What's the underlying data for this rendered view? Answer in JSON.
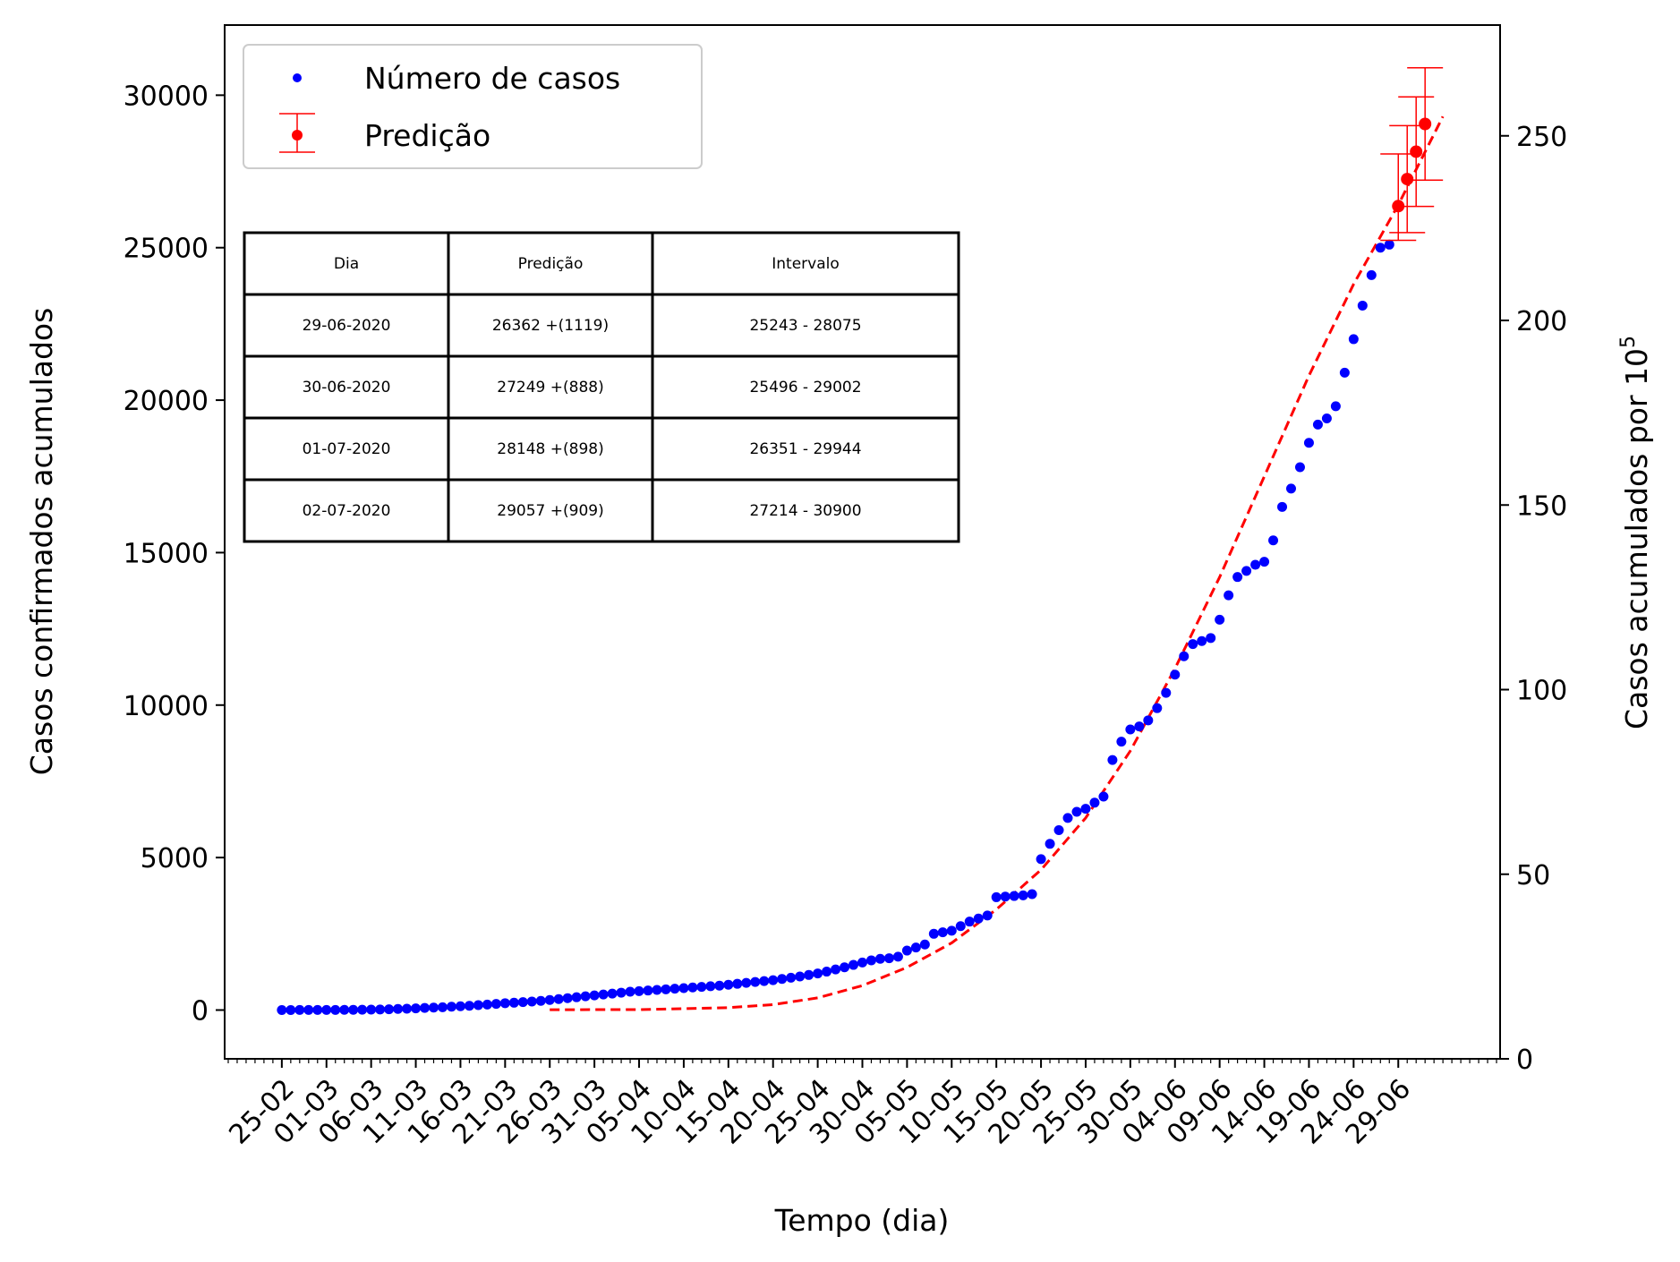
{
  "chart_data": {
    "type": "scatter",
    "xlabel": "Tempo (dia)",
    "ylabel_left": "Casos confirmados acumulados",
    "ylabel_right_main": "Casos acumulados por 10",
    "ylabel_right_sup": "5",
    "ylim_left": [
      -1600,
      32300
    ],
    "yticks_left": [
      "0",
      "5000",
      "10000",
      "15000",
      "20000",
      "25000",
      "30000"
    ],
    "ylim_right": [
      0,
      280
    ],
    "yticks_right": [
      "0",
      "50",
      "100",
      "150",
      "200",
      "250"
    ],
    "x_start_date": "2020-02-25",
    "xlim_days": [
      -6.4,
      136.4
    ],
    "xtick_labels": [
      "25-02",
      "01-03",
      "06-03",
      "11-03",
      "16-03",
      "21-03",
      "26-03",
      "31-03",
      "05-04",
      "10-04",
      "15-04",
      "20-04",
      "25-04",
      "30-04",
      "05-05",
      "10-05",
      "15-05",
      "20-05",
      "25-05",
      "30-05",
      "04-06",
      "09-06",
      "14-06",
      "19-06",
      "24-06",
      "29-06"
    ],
    "grid": false,
    "legend_position": "upper-left",
    "legend": [
      {
        "label": "Número de casos",
        "color": "#0000ff",
        "marker": "dot"
      },
      {
        "label": "Predição",
        "color": "#ff0000",
        "marker": "errorbar"
      }
    ],
    "series": [
      {
        "name": "Número de casos",
        "color": "#0000ff",
        "points": [
          [
            0,
            1
          ],
          [
            1,
            1
          ],
          [
            2,
            2
          ],
          [
            3,
            2
          ],
          [
            4,
            2
          ],
          [
            5,
            4
          ],
          [
            6,
            4
          ],
          [
            7,
            6
          ],
          [
            8,
            8
          ],
          [
            9,
            10
          ],
          [
            10,
            13
          ],
          [
            11,
            19
          ],
          [
            12,
            25
          ],
          [
            13,
            36
          ],
          [
            14,
            44
          ],
          [
            15,
            55
          ],
          [
            16,
            68
          ],
          [
            17,
            80
          ],
          [
            18,
            90
          ],
          [
            19,
            110
          ],
          [
            20,
            125
          ],
          [
            21,
            140
          ],
          [
            22,
            160
          ],
          [
            23,
            180
          ],
          [
            24,
            200
          ],
          [
            25,
            225
          ],
          [
            26,
            240
          ],
          [
            27,
            260
          ],
          [
            28,
            280
          ],
          [
            29,
            300
          ],
          [
            30,
            330
          ],
          [
            31,
            360
          ],
          [
            32,
            390
          ],
          [
            33,
            420
          ],
          [
            34,
            450
          ],
          [
            35,
            480
          ],
          [
            36,
            510
          ],
          [
            37,
            540
          ],
          [
            38,
            570
          ],
          [
            39,
            600
          ],
          [
            40,
            620
          ],
          [
            41,
            640
          ],
          [
            42,
            660
          ],
          [
            43,
            680
          ],
          [
            44,
            700
          ],
          [
            45,
            720
          ],
          [
            46,
            740
          ],
          [
            47,
            760
          ],
          [
            48,
            780
          ],
          [
            49,
            800
          ],
          [
            50,
            830
          ],
          [
            51,
            860
          ],
          [
            52,
            890
          ],
          [
            53,
            920
          ],
          [
            54,
            950
          ],
          [
            55,
            980
          ],
          [
            56,
            1020
          ],
          [
            57,
            1060
          ],
          [
            58,
            1100
          ],
          [
            59,
            1150
          ],
          [
            60,
            1200
          ],
          [
            61,
            1260
          ],
          [
            62,
            1330
          ],
          [
            63,
            1400
          ],
          [
            64,
            1480
          ],
          [
            65,
            1560
          ],
          [
            66,
            1630
          ],
          [
            67,
            1680
          ],
          [
            68,
            1700
          ],
          [
            69,
            1750
          ],
          [
            70,
            1950
          ],
          [
            71,
            2050
          ],
          [
            72,
            2150
          ],
          [
            73,
            2500
          ],
          [
            74,
            2550
          ],
          [
            75,
            2600
          ],
          [
            76,
            2750
          ],
          [
            77,
            2900
          ],
          [
            78,
            3000
          ],
          [
            79,
            3100
          ],
          [
            80,
            3700
          ],
          [
            81,
            3720
          ],
          [
            82,
            3740
          ],
          [
            83,
            3760
          ],
          [
            84,
            3800
          ],
          [
            85,
            4950
          ],
          [
            86,
            5450
          ],
          [
            87,
            5900
          ],
          [
            88,
            6300
          ],
          [
            89,
            6500
          ],
          [
            90,
            6600
          ],
          [
            91,
            6800
          ],
          [
            92,
            7000
          ],
          [
            93,
            8200
          ],
          [
            94,
            8800
          ],
          [
            95,
            9200
          ],
          [
            96,
            9300
          ],
          [
            97,
            9500
          ],
          [
            98,
            9900
          ],
          [
            99,
            10400
          ],
          [
            100,
            11000
          ],
          [
            101,
            11600
          ],
          [
            102,
            12000
          ],
          [
            103,
            12100
          ],
          [
            104,
            12200
          ],
          [
            105,
            12800
          ],
          [
            106,
            13600
          ],
          [
            107,
            14200
          ],
          [
            108,
            14400
          ],
          [
            109,
            14600
          ],
          [
            110,
            14700
          ],
          [
            111,
            15400
          ],
          [
            112,
            16500
          ],
          [
            113,
            17100
          ],
          [
            114,
            17800
          ],
          [
            115,
            18600
          ],
          [
            116,
            19200
          ],
          [
            117,
            19400
          ],
          [
            118,
            19800
          ],
          [
            119,
            20900
          ],
          [
            120,
            22000
          ],
          [
            121,
            23100
          ],
          [
            122,
            24100
          ],
          [
            123,
            25000
          ],
          [
            124,
            25100
          ]
        ]
      },
      {
        "name": "Predição",
        "color": "#ff0000",
        "points": [
          {
            "x": 125,
            "y": 26362,
            "low": 25243,
            "high": 28075
          },
          {
            "x": 126,
            "y": 27249,
            "low": 25496,
            "high": 29002
          },
          {
            "x": 127,
            "y": 28148,
            "low": 26351,
            "high": 29944
          },
          {
            "x": 128,
            "y": 29057,
            "low": 27214,
            "high": 30900
          }
        ]
      },
      {
        "type": "dashed-line",
        "color": "#ff0000",
        "points": [
          [
            30,
            10
          ],
          [
            40,
            15
          ],
          [
            50,
            80
          ],
          [
            55,
            180
          ],
          [
            60,
            400
          ],
          [
            65,
            800
          ],
          [
            70,
            1400
          ],
          [
            75,
            2200
          ],
          [
            80,
            3300
          ],
          [
            85,
            4600
          ],
          [
            90,
            6300
          ],
          [
            95,
            8500
          ],
          [
            100,
            11200
          ],
          [
            105,
            14200
          ],
          [
            110,
            17500
          ],
          [
            115,
            20800
          ],
          [
            120,
            23800
          ],
          [
            125,
            26400
          ],
          [
            130,
            29300
          ]
        ]
      }
    ]
  },
  "table": {
    "headers": [
      "Dia",
      "Predição",
      "Intervalo"
    ],
    "rows": [
      [
        "29-06-2020",
        "26362 +(1119)",
        "25243 - 28075"
      ],
      [
        "30-06-2020",
        "27249 +(888)",
        "25496 - 29002"
      ],
      [
        "01-07-2020",
        "28148 +(898)",
        "26351 - 29944"
      ],
      [
        "02-07-2020",
        "29057 +(909)",
        "27214 - 30900"
      ]
    ]
  }
}
